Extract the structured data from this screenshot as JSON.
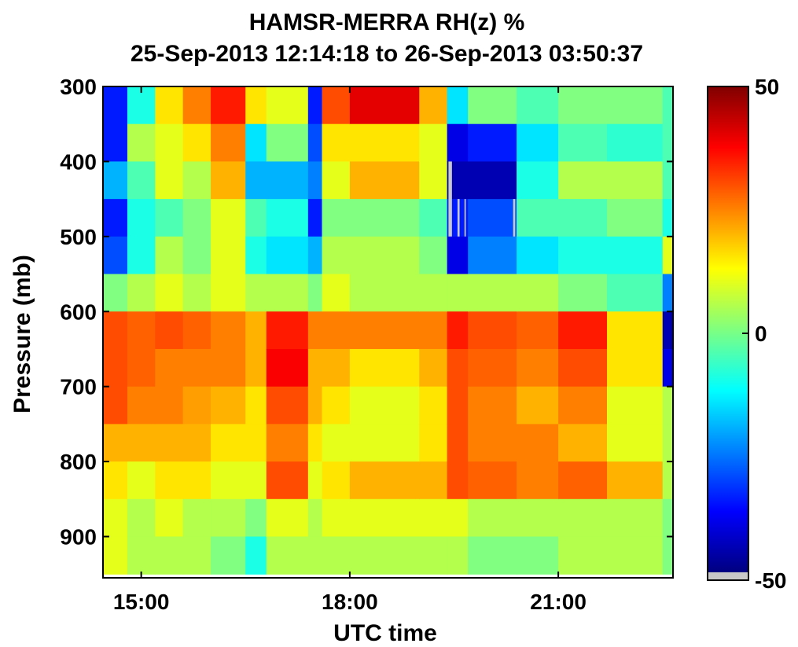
{
  "chart_data": {
    "type": "heatmap",
    "title": "HAMSR-MERRA RH(z) %",
    "subtitle": "25-Sep-2013 12:14:18 to 26-Sep-2013 03:50:37",
    "xlabel": "UTC time",
    "ylabel": "Pressure (mb)",
    "x_ticks": [
      "15:00",
      "18:00",
      "21:00"
    ],
    "x_tick_hours": [
      15,
      18,
      21
    ],
    "xlim_hours": [
      14.45,
      22.65
    ],
    "y_ticks": [
      300,
      400,
      500,
      600,
      700,
      800,
      900
    ],
    "ylim": [
      300,
      955
    ],
    "colorbar": {
      "ticks": [
        50,
        0,
        -50
      ],
      "tick_labels": [
        "50",
        "0",
        "-50"
      ],
      "range": [
        -50,
        50
      ],
      "colormap": "jet",
      "missing_color": "#c8c8c8"
    },
    "pressure_levels": [
      300,
      350,
      400,
      450,
      500,
      550,
      600,
      650,
      700,
      750,
      800,
      850,
      900,
      950
    ],
    "segments": [
      {
        "start": 14.45,
        "end": 14.8,
        "values": [
          -35,
          -35,
          -20,
          -35,
          -30,
          0,
          30,
          30,
          30,
          20,
          15,
          10,
          10
        ]
      },
      {
        "start": 14.8,
        "end": 15.2,
        "values": [
          -10,
          5,
          -5,
          -10,
          -10,
          5,
          28,
          28,
          25,
          20,
          10,
          5,
          5
        ]
      },
      {
        "start": 15.2,
        "end": 15.6,
        "values": [
          15,
          10,
          10,
          -5,
          5,
          10,
          30,
          25,
          25,
          20,
          15,
          10,
          5
        ]
      },
      {
        "start": 15.6,
        "end": 16.0,
        "values": [
          25,
          15,
          5,
          0,
          0,
          5,
          28,
          25,
          22,
          20,
          15,
          5,
          5
        ]
      },
      {
        "start": 16.0,
        "end": 16.5,
        "values": [
          35,
          25,
          20,
          10,
          10,
          10,
          25,
          25,
          20,
          15,
          10,
          5,
          0
        ]
      },
      {
        "start": 16.5,
        "end": 16.8,
        "values": [
          15,
          -15,
          -20,
          -5,
          -10,
          5,
          20,
          20,
          15,
          15,
          10,
          0,
          -10
        ]
      },
      {
        "start": 16.8,
        "end": 17.4,
        "values": [
          10,
          0,
          -20,
          -10,
          -15,
          5,
          35,
          38,
          30,
          25,
          30,
          10,
          5
        ]
      },
      {
        "start": 17.4,
        "end": 17.6,
        "values": [
          -35,
          -30,
          -25,
          -35,
          -20,
          0,
          25,
          20,
          20,
          15,
          10,
          5,
          5
        ]
      },
      {
        "start": 17.6,
        "end": 18.0,
        "values": [
          30,
          15,
          10,
          0,
          5,
          10,
          25,
          20,
          15,
          10,
          15,
          10,
          5
        ]
      },
      {
        "start": 18.0,
        "end": 19.0,
        "values": [
          40,
          15,
          20,
          0,
          5,
          5,
          25,
          15,
          10,
          10,
          20,
          10,
          5
        ]
      },
      {
        "start": 19.0,
        "end": 19.4,
        "values": [
          20,
          10,
          10,
          -5,
          0,
          5,
          25,
          20,
          15,
          15,
          20,
          10,
          5
        ]
      },
      {
        "start": 19.4,
        "end": 19.7,
        "values": [
          -15,
          -40,
          -45,
          -35,
          -40,
          5,
          35,
          30,
          30,
          30,
          30,
          10,
          5
        ]
      },
      {
        "start": 19.7,
        "end": 20.4,
        "values": [
          0,
          -35,
          -45,
          -30,
          -25,
          5,
          30,
          28,
          25,
          25,
          28,
          5,
          0
        ]
      },
      {
        "start": 20.4,
        "end": 21.0,
        "values": [
          -5,
          -15,
          -10,
          -5,
          -15,
          5,
          28,
          25,
          20,
          25,
          25,
          5,
          0
        ]
      },
      {
        "start": 21.0,
        "end": 21.7,
        "values": [
          0,
          -5,
          5,
          -5,
          -10,
          0,
          35,
          30,
          25,
          20,
          28,
          5,
          5
        ]
      },
      {
        "start": 21.7,
        "end": 22.5,
        "values": [
          0,
          -8,
          5,
          0,
          -10,
          -5,
          15,
          15,
          10,
          10,
          20,
          5,
          5
        ]
      },
      {
        "start": 22.5,
        "end": 22.65,
        "values": [
          -5,
          -5,
          -5,
          -10,
          10,
          -25,
          -45,
          -40,
          5,
          5,
          5,
          0,
          0
        ]
      }
    ],
    "missing_strips": [
      {
        "start": 19.42,
        "end": 19.47,
        "pmin": 400,
        "pmax": 500
      },
      {
        "start": 19.55,
        "end": 19.58,
        "pmin": 450,
        "pmax": 500
      },
      {
        "start": 19.65,
        "end": 19.67,
        "pmin": 450,
        "pmax": 500
      },
      {
        "start": 20.35,
        "end": 20.38,
        "pmin": 450,
        "pmax": 500
      }
    ]
  }
}
